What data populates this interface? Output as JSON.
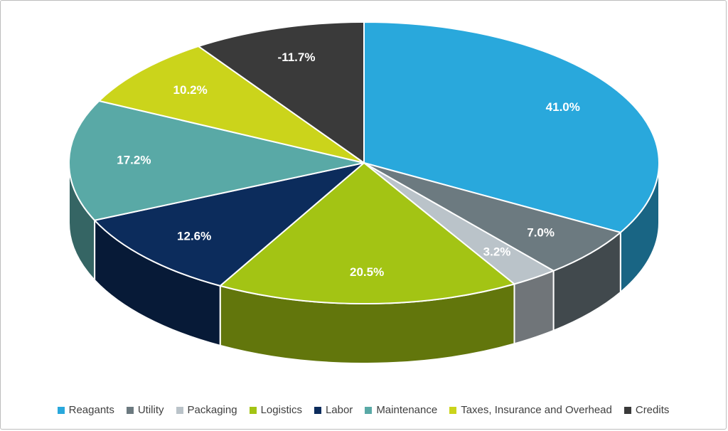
{
  "chart_data": {
    "type": "pie",
    "is_3d": true,
    "title": "",
    "legend_position": "bottom",
    "label_color": "#ffffff",
    "legend_text_color": "#404040",
    "labels": [
      "Reagants",
      "Utility",
      "Packaging",
      "Logistics",
      "Labor",
      "Maintenance",
      "Taxes, Insurance and Overhead",
      "Credits"
    ],
    "values": [
      41.0,
      7.0,
      3.2,
      20.5,
      12.6,
      17.2,
      10.2,
      -11.7
    ],
    "display_labels": [
      "41.0%",
      "7.0%",
      "3.2%",
      "20.5%",
      "12.6%",
      "17.2%",
      "10.2%",
      "-11.7%"
    ],
    "colors": [
      "#29A8DC",
      "#6C7A80",
      "#BAC3C9",
      "#A3C414",
      "#0C2C5C",
      "#59A9A6",
      "#CBD41B",
      "#3A3A3A"
    ]
  }
}
